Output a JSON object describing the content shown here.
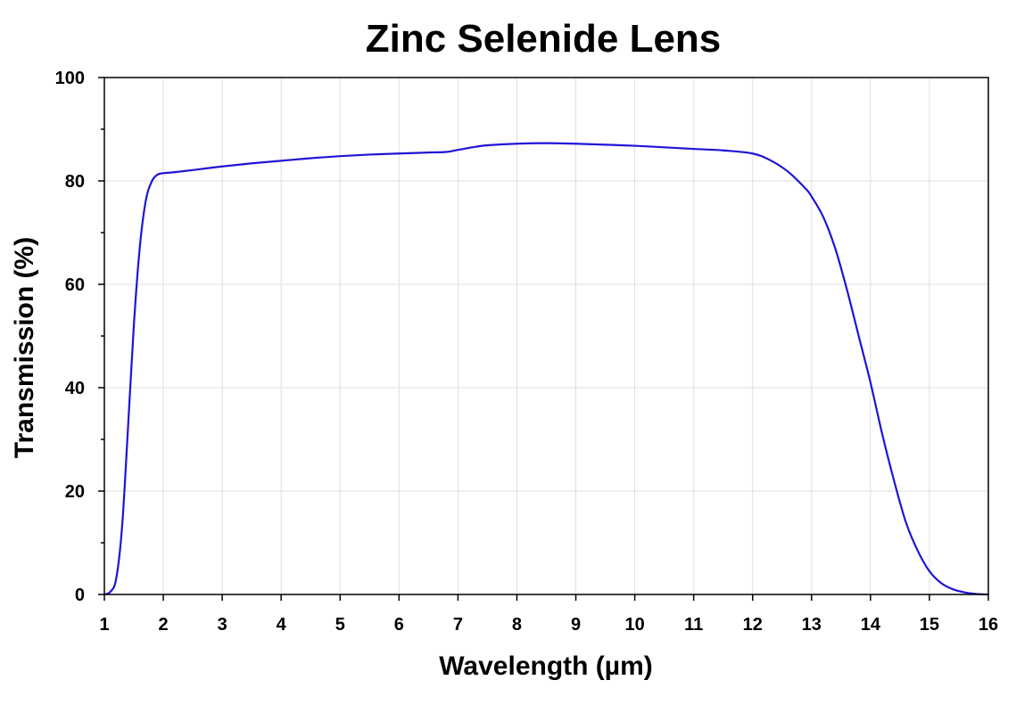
{
  "chart_data": {
    "type": "line",
    "title": "Zinc Selenide Lens",
    "xlabel": "Wavelength (µm)",
    "ylabel": "Transmission (%)",
    "xlim": [
      1,
      16
    ],
    "ylim": [
      0,
      100
    ],
    "x_ticks": [
      1,
      2,
      3,
      4,
      5,
      6,
      7,
      8,
      9,
      10,
      11,
      12,
      13,
      14,
      15,
      16
    ],
    "y_ticks": [
      0,
      20,
      40,
      60,
      80,
      100
    ],
    "grid": true,
    "series": [
      {
        "color": "#1f14d6",
        "x": [
          1.0,
          1.1,
          1.2,
          1.3,
          1.4,
          1.5,
          1.6,
          1.7,
          1.8,
          1.9,
          2.0,
          2.1,
          2.2,
          2.5,
          3.0,
          3.5,
          4.0,
          4.5,
          5.0,
          5.5,
          6.0,
          6.5,
          6.8,
          7.0,
          7.3,
          7.5,
          8.0,
          8.5,
          9.0,
          9.5,
          10.0,
          10.5,
          11.0,
          11.5,
          12.0,
          12.3,
          12.6,
          12.9,
          13.0,
          13.2,
          13.4,
          13.6,
          13.8,
          14.0,
          14.2,
          14.4,
          14.6,
          14.8,
          15.0,
          15.2,
          15.4,
          15.6,
          15.8,
          16.0
        ],
        "y": [
          0.0,
          0.5,
          3.0,
          13.0,
          32.0,
          52.0,
          67.0,
          76.0,
          79.8,
          81.2,
          81.5,
          81.6,
          81.7,
          82.1,
          82.8,
          83.4,
          83.9,
          84.4,
          84.8,
          85.1,
          85.3,
          85.5,
          85.6,
          86.0,
          86.6,
          86.9,
          87.2,
          87.3,
          87.2,
          87.0,
          86.8,
          86.5,
          86.2,
          85.9,
          85.3,
          84.0,
          81.8,
          78.5,
          77.0,
          73.0,
          67.0,
          59.0,
          50.0,
          41.0,
          31.0,
          22.0,
          14.0,
          8.5,
          4.5,
          2.2,
          1.0,
          0.4,
          0.1,
          0.0
        ]
      }
    ]
  }
}
